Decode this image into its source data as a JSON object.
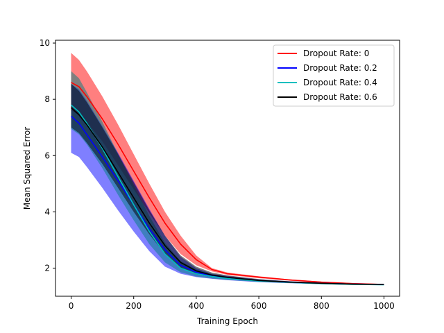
{
  "chart_data": {
    "type": "line",
    "title": "",
    "xlabel": "Training Epoch",
    "ylabel": "Mean Squared Error",
    "xlim": [
      -50,
      1050
    ],
    "ylim": [
      1.0,
      10.1
    ],
    "xticks": [
      0,
      200,
      400,
      600,
      800,
      1000
    ],
    "yticks": [
      2,
      4,
      6,
      8,
      10
    ],
    "grid": false,
    "legend": {
      "position": "top-right"
    },
    "x": [
      0,
      25,
      50,
      100,
      150,
      200,
      250,
      300,
      350,
      400,
      450,
      500,
      600,
      700,
      800,
      900,
      1000
    ],
    "series": [
      {
        "name": "Dropout Rate: 0",
        "line_color": "#ff0000",
        "band_color": "#ff0000",
        "band_opacity": 0.5,
        "mean": [
          8.6,
          8.45,
          8.1,
          7.3,
          6.4,
          5.45,
          4.5,
          3.6,
          2.85,
          2.3,
          1.95,
          1.8,
          1.68,
          1.58,
          1.5,
          1.45,
          1.42
        ],
        "upper": [
          9.65,
          9.4,
          9.0,
          8.1,
          7.1,
          6.05,
          5.0,
          4.0,
          3.15,
          2.45,
          2.0,
          1.84,
          1.71,
          1.6,
          1.52,
          1.47,
          1.44
        ],
        "lower": [
          7.6,
          7.45,
          7.2,
          6.5,
          5.65,
          4.8,
          3.95,
          3.15,
          2.5,
          2.1,
          1.88,
          1.76,
          1.64,
          1.55,
          1.48,
          1.43,
          1.4
        ]
      },
      {
        "name": "Dropout Rate: 0.2",
        "line_color": "#0000ff",
        "band_color": "#0000ff",
        "band_opacity": 0.5,
        "mean": [
          7.4,
          7.15,
          6.75,
          5.95,
          5.1,
          4.25,
          3.4,
          2.65,
          2.1,
          1.85,
          1.72,
          1.65,
          1.55,
          1.5,
          1.46,
          1.43,
          1.42
        ],
        "upper": [
          8.55,
          8.35,
          7.95,
          7.05,
          6.1,
          5.1,
          4.1,
          3.15,
          2.4,
          2.0,
          1.8,
          1.72,
          1.6,
          1.53,
          1.48,
          1.45,
          1.44
        ],
        "lower": [
          6.1,
          5.95,
          5.6,
          4.85,
          4.05,
          3.3,
          2.6,
          2.05,
          1.8,
          1.68,
          1.62,
          1.57,
          1.5,
          1.46,
          1.43,
          1.41,
          1.4
        ]
      },
      {
        "name": "Dropout Rate: 0.4",
        "line_color": "#00bfbf",
        "band_color": "#008080",
        "band_opacity": 0.5,
        "mean": [
          7.8,
          7.55,
          7.15,
          6.25,
          5.25,
          4.25,
          3.3,
          2.5,
          2.0,
          1.8,
          1.7,
          1.63,
          1.54,
          1.49,
          1.45,
          1.42,
          1.41
        ],
        "upper": [
          9.0,
          8.75,
          8.25,
          7.2,
          6.05,
          4.95,
          3.85,
          2.9,
          2.25,
          1.95,
          1.78,
          1.69,
          1.58,
          1.52,
          1.47,
          1.44,
          1.43
        ],
        "lower": [
          6.95,
          6.75,
          6.4,
          5.55,
          4.6,
          3.7,
          2.85,
          2.2,
          1.85,
          1.7,
          1.63,
          1.58,
          1.51,
          1.47,
          1.43,
          1.4,
          1.39
        ]
      },
      {
        "name": "Dropout Rate: 0.6",
        "line_color": "#000000",
        "band_color": "#000000",
        "band_opacity": 0.5,
        "mean": [
          7.7,
          7.45,
          7.1,
          6.3,
          5.4,
          4.5,
          3.6,
          2.8,
          2.2,
          1.9,
          1.75,
          1.67,
          1.56,
          1.5,
          1.46,
          1.43,
          1.42
        ],
        "upper": [
          8.55,
          8.3,
          7.9,
          7.0,
          6.05,
          5.05,
          4.05,
          3.15,
          2.45,
          2.05,
          1.84,
          1.74,
          1.61,
          1.53,
          1.48,
          1.45,
          1.44
        ],
        "lower": [
          7.0,
          6.8,
          6.45,
          5.7,
          4.85,
          4.0,
          3.2,
          2.5,
          2.0,
          1.78,
          1.68,
          1.62,
          1.52,
          1.47,
          1.44,
          1.41,
          1.4
        ]
      }
    ]
  }
}
